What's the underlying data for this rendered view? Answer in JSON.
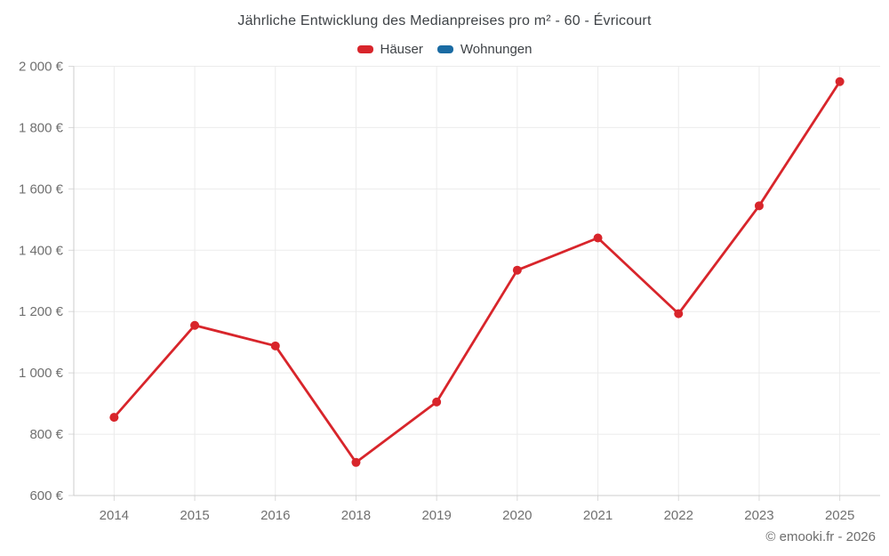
{
  "chart_data": {
    "type": "line",
    "title": "Jährliche Entwicklung des Medianpreises pro m² - 60 - Évricourt",
    "categories": [
      "2014",
      "2015",
      "2016",
      "2018",
      "2019",
      "2020",
      "2021",
      "2022",
      "2023",
      "2025"
    ],
    "series": [
      {
        "name": "Häuser",
        "color": "#d8252b",
        "values": [
          855,
          1155,
          1088,
          708,
          905,
          1335,
          1440,
          1193,
          1545,
          1950
        ]
      },
      {
        "name": "Wohnungen",
        "color": "#1a6ba3",
        "values": []
      }
    ],
    "ylabel": "",
    "xlabel": "",
    "ylim": [
      600,
      2000
    ],
    "ytick_step": 200,
    "ytick_labels": [
      "600 €",
      "800 €",
      "1 000 €",
      "1 200 €",
      "1 400 €",
      "1 600 €",
      "1 800 €",
      "2 000 €"
    ],
    "grid": true,
    "legend_position": "top-center",
    "watermark": "© emooki.fr - 2026"
  }
}
